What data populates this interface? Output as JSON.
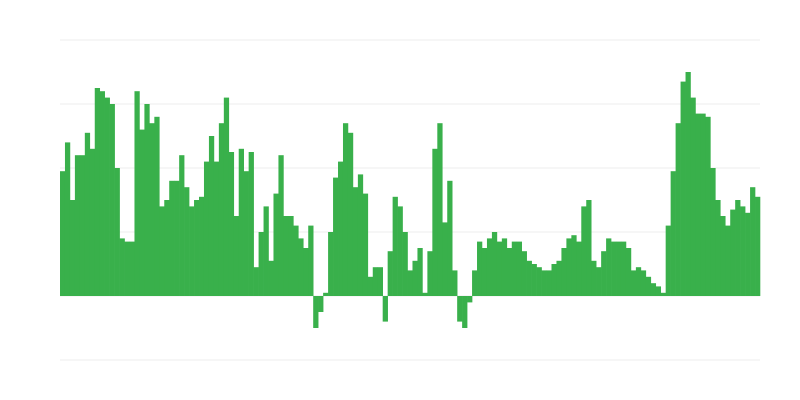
{
  "chart_data": {
    "type": "bar",
    "title": "",
    "xlabel": "",
    "ylabel": "",
    "ylim": [
      -1,
      4
    ],
    "grid": true,
    "legend": "none",
    "color": "#39b04b",
    "gridline_color": "#eeeeee",
    "values": [
      1.95,
      2.4,
      1.5,
      2.2,
      2.2,
      2.55,
      2.3,
      3.25,
      3.2,
      3.1,
      3.0,
      2.0,
      0.9,
      0.85,
      0.85,
      3.2,
      2.6,
      3.0,
      2.7,
      2.8,
      1.4,
      1.5,
      1.8,
      1.8,
      2.2,
      1.7,
      1.4,
      1.5,
      1.55,
      2.1,
      2.5,
      2.1,
      2.7,
      3.1,
      2.25,
      1.25,
      2.3,
      1.95,
      2.25,
      0.45,
      1.0,
      1.4,
      0.55,
      1.6,
      2.2,
      1.25,
      1.25,
      1.1,
      0.9,
      0.75,
      1.1,
      -0.5,
      -0.25,
      0.05,
      1.0,
      1.85,
      2.1,
      2.7,
      2.55,
      1.7,
      1.9,
      1.6,
      0.3,
      0.45,
      0.45,
      -0.4,
      0.7,
      1.55,
      1.4,
      1.0,
      0.4,
      0.55,
      0.75,
      0.05,
      0.7,
      2.3,
      2.7,
      1.15,
      1.8,
      0.4,
      -0.4,
      -0.5,
      -0.1,
      0.4,
      0.85,
      0.75,
      0.9,
      1.0,
      0.85,
      0.9,
      0.75,
      0.85,
      0.85,
      0.7,
      0.55,
      0.5,
      0.45,
      0.4,
      0.4,
      0.5,
      0.55,
      0.75,
      0.9,
      0.95,
      0.85,
      1.4,
      1.5,
      0.55,
      0.45,
      0.7,
      0.9,
      0.85,
      0.85,
      0.85,
      0.75,
      0.4,
      0.45,
      0.4,
      0.3,
      0.2,
      0.15,
      0.05,
      1.1,
      1.95,
      2.7,
      3.35,
      3.5,
      3.1,
      2.85,
      2.85,
      2.8,
      2.0,
      1.5,
      1.25,
      1.1,
      1.35,
      1.5,
      1.4,
      1.3,
      1.7,
      1.55
    ]
  }
}
